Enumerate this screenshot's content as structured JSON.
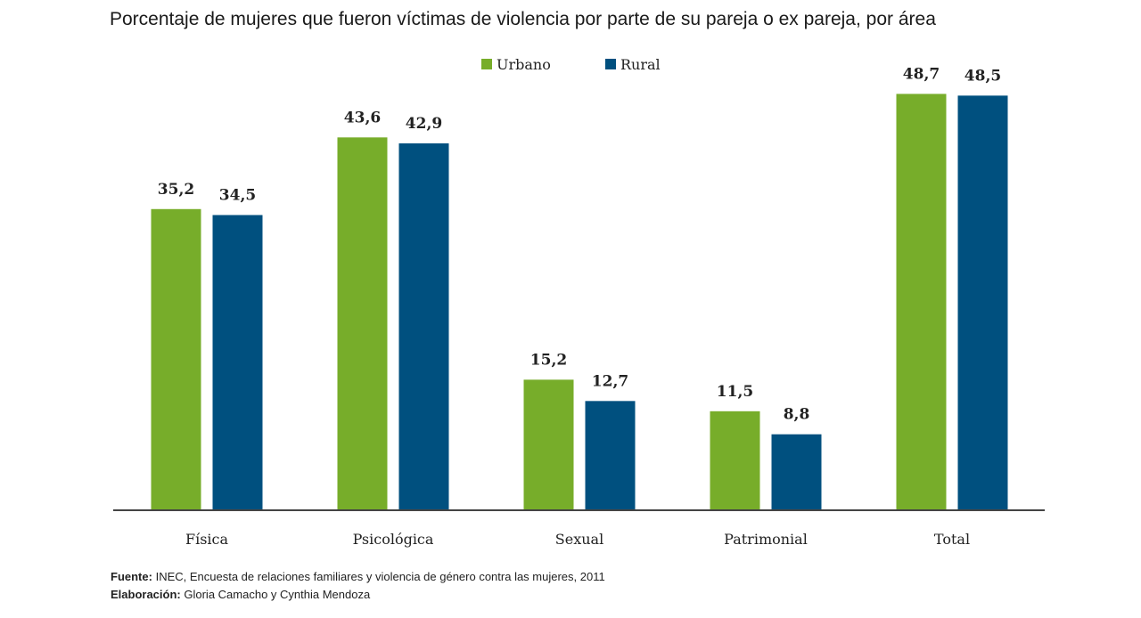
{
  "chart_data": {
    "type": "bar",
    "title": "Porcentaje de mujeres que fueron víctimas de violencia por parte de su pareja o ex pareja,  por área",
    "categories": [
      "Física",
      "Psicológica",
      "Sexual",
      "Patrimonial",
      "Total"
    ],
    "series": [
      {
        "name": "Urbano",
        "color": "#77ad2a",
        "values": [
          35.2,
          43.6,
          15.2,
          11.5,
          48.7
        ],
        "value_labels": [
          "35,2",
          "43,6",
          "15,2",
          "11,5",
          "48,7"
        ]
      },
      {
        "name": "Rural",
        "color": "#00507f",
        "values": [
          34.5,
          42.9,
          12.7,
          8.8,
          48.5
        ],
        "value_labels": [
          "34,5",
          "42,9",
          "12,7",
          "8,8",
          "48,5"
        ]
      }
    ],
    "ylim": [
      0,
      50
    ],
    "source": {
      "label": "Fuente:",
      "text": "INEC, Encuesta de relaciones familiares y violencia de género contra las mujeres, 2011"
    },
    "credits": {
      "label": "Elaboración:",
      "text": "Gloria Camacho y Cynthia Mendoza"
    }
  }
}
